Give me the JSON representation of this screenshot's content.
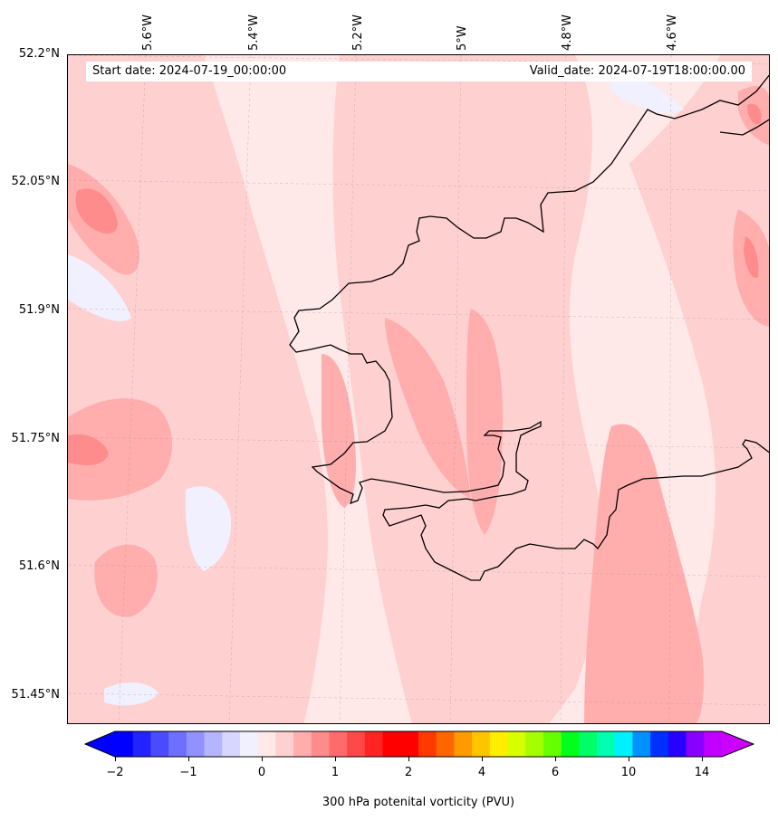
{
  "map": {
    "start_date": "Start date: 2024-07-19_00:00:00",
    "valid_date": "Valid_date: 2024-07-19T18:00:00.00",
    "lat_labels": [
      "52.2°N",
      "52.05°N",
      "51.9°N",
      "51.75°N",
      "51.6°N",
      "51.45°N"
    ],
    "lon_labels": [
      "5.6°W",
      "5.4°W",
      "5.2°W",
      "5°W",
      "4.8°W",
      "4.6°W"
    ],
    "field": "300 hPa potential vorticity",
    "coastline_color": "#000000",
    "gridline_color": "#999999"
  },
  "colorbar": {
    "label": "300 hPa potenital vorticity (PVU)",
    "ticks": [
      "−2",
      "−1",
      "0",
      "1",
      "2",
      "4",
      "6",
      "10",
      "14"
    ],
    "colors": [
      "#0000ff",
      "#2323ff",
      "#4a4aff",
      "#6e6eff",
      "#9191ff",
      "#b4b4ff",
      "#d6d6ff",
      "#f0f0ff",
      "#ffe8e8",
      "#ffd0d0",
      "#ffadad",
      "#ff8c8c",
      "#ff6a6a",
      "#ff4848",
      "#ff2424",
      "#ff0000",
      "#ff0000",
      "#ff3a00",
      "#ff6600",
      "#ff9a00",
      "#ffc400",
      "#ffee00",
      "#d8ff00",
      "#a6ff00",
      "#66ff00",
      "#00ff1a",
      "#00ff66",
      "#00ffb0",
      "#00f0ff",
      "#0090ff",
      "#0030ff",
      "#2800ff",
      "#8a00ff",
      "#c000ff"
    ],
    "extend_low_color": "#0000ff",
    "extend_high_color": "#cc00ff"
  }
}
